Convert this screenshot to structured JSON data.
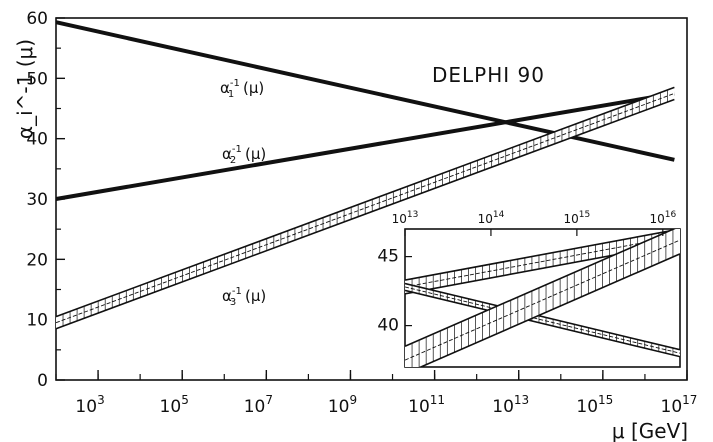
{
  "chart_data": {
    "type": "line",
    "title": "DELPHI 90",
    "xlabel": "μ [GeV]",
    "ylabel": "α_i^-1 (μ)",
    "ylim": [
      0,
      60
    ],
    "xlim_log10": [
      2,
      17
    ],
    "x_scale": "log",
    "grid": false,
    "x_ticks": [
      {
        "exp": 3,
        "base": "10",
        "sup": "3"
      },
      {
        "exp": 5,
        "base": "10",
        "sup": "5"
      },
      {
        "exp": 7,
        "base": "10",
        "sup": "7"
      },
      {
        "exp": 9,
        "base": "10",
        "sup": "9"
      },
      {
        "exp": 11,
        "base": "10",
        "sup": "11"
      },
      {
        "exp": 13,
        "base": "10",
        "sup": "13"
      },
      {
        "exp": 15,
        "base": "10",
        "sup": "15"
      },
      {
        "exp": 17,
        "base": "10",
        "sup": "17"
      }
    ],
    "y_ticks": [
      0,
      10,
      20,
      30,
      40,
      50,
      60
    ],
    "series": [
      {
        "name": "α_1^-1 (μ)",
        "sym": "α",
        "sub": "1",
        "sup": "-1",
        "arg": "(μ)",
        "x_log10": [
          2,
          16.7
        ],
        "values": [
          59.3,
          36.5
        ],
        "band": 0.4
      },
      {
        "name": "α_2^-1 (μ)",
        "sym": "α",
        "sub": "2",
        "sup": "-1",
        "arg": "(μ)",
        "x_log10": [
          2,
          16.7
        ],
        "values": [
          30.0,
          47.5
        ],
        "band": 0.4
      },
      {
        "name": "α_3^-1 (μ)",
        "sym": "α",
        "sub": "3",
        "sup": "-1",
        "arg": "(μ)",
        "x_log10": [
          2,
          16.7
        ],
        "values": [
          9.5,
          47.5
        ],
        "band": 1.0
      }
    ],
    "inset": {
      "x_ticks": [
        {
          "exp": 13,
          "base": "10",
          "sup": "13"
        },
        {
          "exp": 14,
          "base": "10",
          "sup": "14"
        },
        {
          "exp": 15,
          "base": "10",
          "sup": "15"
        },
        {
          "exp": 16,
          "base": "10",
          "sup": "16"
        }
      ],
      "y_ticks": [
        40,
        45
      ],
      "xlim_log10": [
        13,
        16.2
      ],
      "ylim": [
        37,
        47
      ],
      "series": [
        {
          "x_log10": [
            13,
            16.2
          ],
          "values": [
            42.8,
            46.5
          ],
          "band": 0.5
        },
        {
          "x_log10": [
            13,
            16.2
          ],
          "values": [
            42.8,
            38.0
          ],
          "band": 0.25
        },
        {
          "x_log10": [
            13,
            16.2
          ],
          "values": [
            37.5,
            46.2
          ],
          "band": 1.0
        }
      ]
    }
  }
}
